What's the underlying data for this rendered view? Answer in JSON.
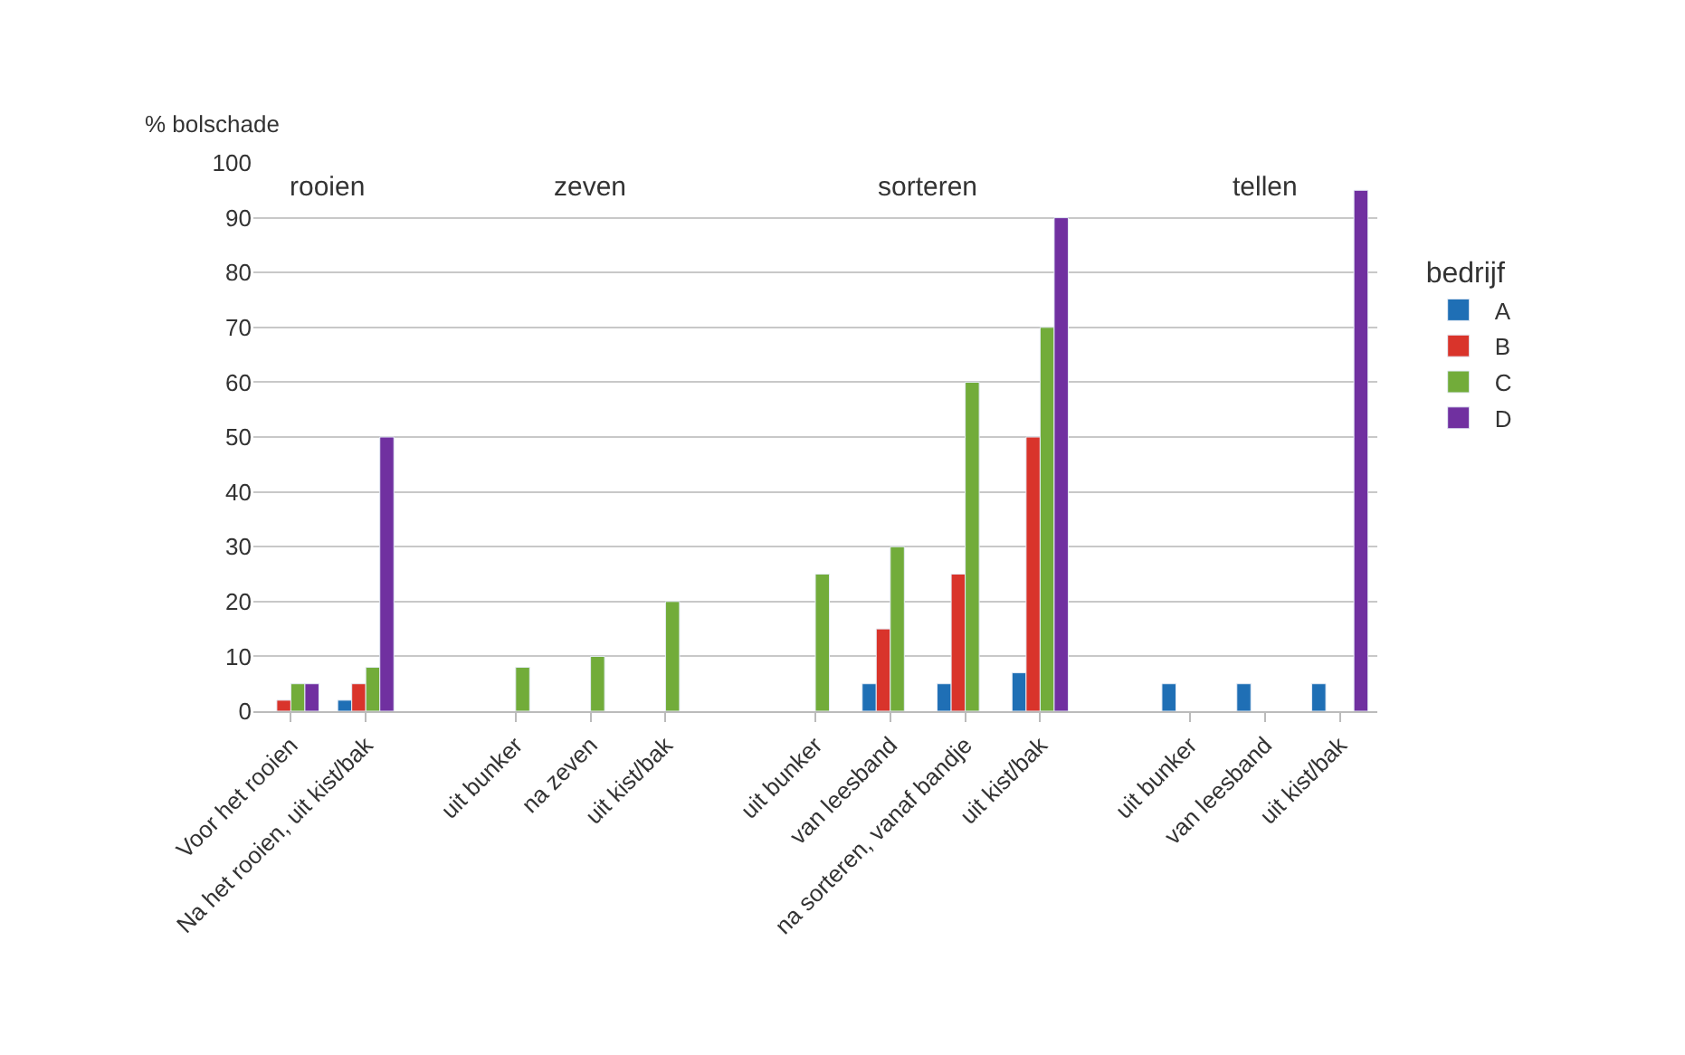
{
  "chart_data": {
    "type": "bar",
    "ylabel": "% bolschade",
    "legend_title": "bedrijf",
    "categories": [
      "Voor het rooien",
      "Na het rooien, uit kist/bak",
      null,
      "uit bunker",
      "na zeven",
      "uit kist/bak",
      null,
      "uit bunker",
      "van leesband",
      "na sorteren, vanaf bandje",
      "uit kist/bak",
      null,
      "uit bunker",
      "van leesband",
      "uit kist/bak"
    ],
    "series": [
      {
        "name": "A",
        "color": "#1f6fb5",
        "values": [
          null,
          2,
          null,
          null,
          null,
          null,
          null,
          null,
          5,
          5,
          7,
          null,
          5,
          5,
          5
        ]
      },
      {
        "name": "B",
        "color": "#d9342b",
        "values": [
          2,
          5,
          null,
          null,
          null,
          null,
          null,
          null,
          15,
          25,
          50,
          null,
          null,
          null,
          null
        ]
      },
      {
        "name": "C",
        "color": "#72ac3a",
        "values": [
          5,
          8,
          null,
          8,
          10,
          20,
          null,
          25,
          30,
          60,
          70,
          null,
          null,
          null,
          null
        ]
      },
      {
        "name": "D",
        "color": "#7030a0",
        "values": [
          5,
          50,
          null,
          null,
          null,
          null,
          null,
          null,
          null,
          null,
          90,
          null,
          null,
          null,
          95
        ]
      }
    ],
    "annotations": [
      "rooien",
      "zeven",
      "sorteren",
      "tellen"
    ],
    "ylim": [
      0,
      100
    ],
    "yticks": [
      0,
      10,
      20,
      30,
      40,
      50,
      60,
      70,
      80,
      90,
      100
    ],
    "grid": "y",
    "legend": "right"
  }
}
